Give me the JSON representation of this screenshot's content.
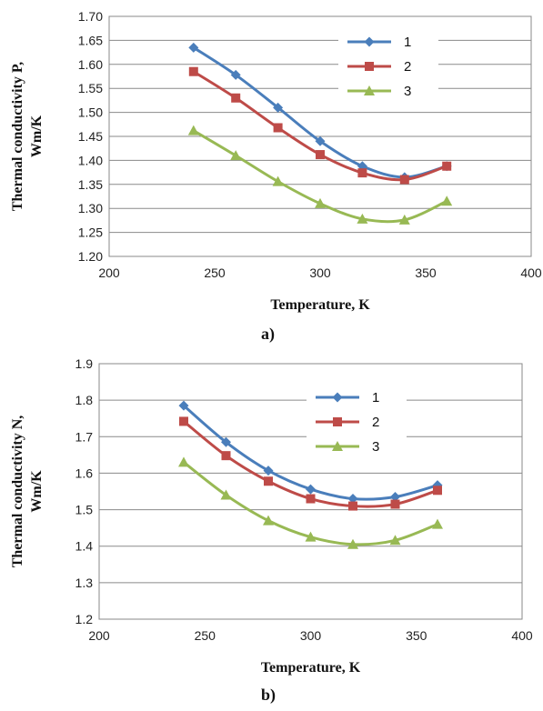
{
  "chart_data": [
    {
      "type": "line",
      "panel_label": "a)",
      "xlabel": "Temperature, K",
      "ylabel_line1": "Thermal conductivity P,",
      "ylabel_line2": "Wm/K",
      "xlim": [
        200,
        400
      ],
      "ylim": [
        1.2,
        1.7
      ],
      "xticks": [
        200,
        250,
        300,
        350,
        400
      ],
      "yticks": [
        1.2,
        1.25,
        1.3,
        1.35,
        1.4,
        1.45,
        1.5,
        1.55,
        1.6,
        1.65,
        1.7
      ],
      "ytick_decimals": 2,
      "grid": true,
      "legend_position": "top-right",
      "x": [
        240,
        260,
        280,
        300,
        320,
        340,
        360
      ],
      "series": [
        {
          "name": "1",
          "color": "#4a7ebb",
          "marker": "diamond",
          "values": [
            1.635,
            1.578,
            1.51,
            1.44,
            1.388,
            1.365,
            1.388
          ]
        },
        {
          "name": "2",
          "color": "#be4b48",
          "marker": "square",
          "values": [
            1.585,
            1.53,
            1.468,
            1.412,
            1.374,
            1.36,
            1.388
          ]
        },
        {
          "name": "3",
          "color": "#98b954",
          "marker": "triangle",
          "values": [
            1.462,
            1.41,
            1.356,
            1.31,
            1.278,
            1.276,
            1.315
          ]
        }
      ]
    },
    {
      "type": "line",
      "panel_label": "b)",
      "xlabel": "Temperature, K",
      "ylabel_line1": "Thermal conductivity N,",
      "ylabel_line2": "Wm/K",
      "xlim": [
        200,
        400
      ],
      "ylim": [
        1.2,
        1.9
      ],
      "xticks": [
        200,
        250,
        300,
        350,
        400
      ],
      "yticks": [
        1.2,
        1.3,
        1.4,
        1.5,
        1.6,
        1.7,
        1.8,
        1.9
      ],
      "ytick_decimals": 1,
      "grid": true,
      "legend_position": "top-right",
      "x": [
        240,
        260,
        280,
        300,
        320,
        340,
        360
      ],
      "series": [
        {
          "name": "1",
          "color": "#4a7ebb",
          "marker": "diamond",
          "values": [
            1.785,
            1.685,
            1.607,
            1.556,
            1.53,
            1.535,
            1.567
          ]
        },
        {
          "name": "2",
          "color": "#be4b48",
          "marker": "square",
          "values": [
            1.742,
            1.648,
            1.578,
            1.53,
            1.51,
            1.515,
            1.553
          ]
        },
        {
          "name": "3",
          "color": "#98b954",
          "marker": "triangle",
          "values": [
            1.63,
            1.54,
            1.47,
            1.425,
            1.405,
            1.416,
            1.46
          ]
        }
      ]
    }
  ]
}
